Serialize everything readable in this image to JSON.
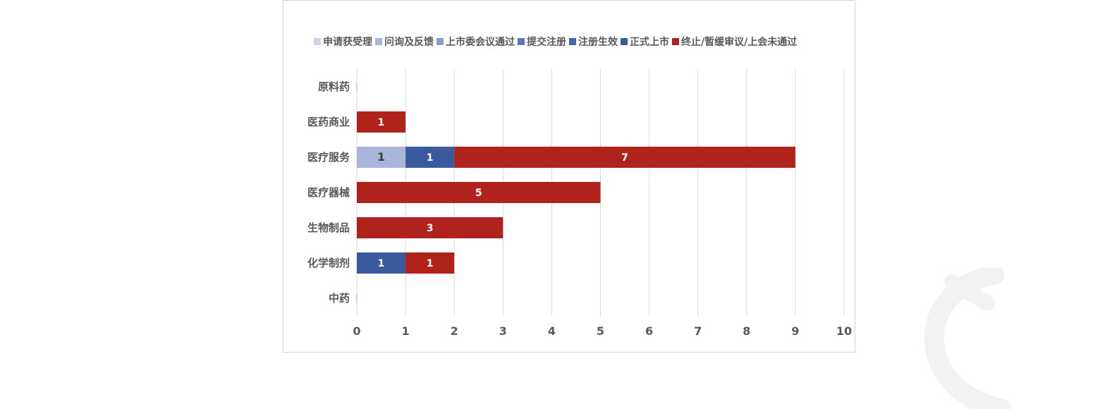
{
  "chart_data": {
    "type": "bar",
    "orientation": "horizontal",
    "stacked": true,
    "categories": [
      "原料药",
      "医药商业",
      "医疗服务",
      "医疗器械",
      "生物制品",
      "化学制剂",
      "中药"
    ],
    "series": [
      {
        "name": "申请获受理",
        "color": "#cdd3e6",
        "values": [
          0,
          0,
          0,
          0,
          0,
          0,
          0
        ]
      },
      {
        "name": "问询及反馈",
        "color": "#aab5da",
        "values": [
          0,
          0,
          1,
          0,
          0,
          0,
          0
        ]
      },
      {
        "name": "上市委会议通过",
        "color": "#8c9bce",
        "values": [
          0,
          0,
          0,
          0,
          0,
          0,
          0
        ]
      },
      {
        "name": "提交注册",
        "color": "#5a77bd",
        "values": [
          0,
          0,
          0,
          0,
          0,
          0,
          0
        ]
      },
      {
        "name": "注册生效",
        "color": "#4466ad",
        "values": [
          0,
          0,
          0,
          0,
          0,
          0,
          0
        ]
      },
      {
        "name": "正式上市",
        "color": "#3b5a9e",
        "values": [
          0,
          0,
          1,
          0,
          0,
          1,
          0
        ]
      },
      {
        "name": "终止/暂缓审议/上会未通过",
        "color": "#b0221c",
        "values": [
          0,
          1,
          7,
          5,
          3,
          1,
          0
        ]
      }
    ],
    "xlim": [
      0,
      10
    ],
    "xticks": [
      "0",
      "1",
      "2",
      "3",
      "4",
      "5",
      "6",
      "7",
      "8",
      "9",
      "10"
    ],
    "grid": "vertical",
    "legend": "top",
    "title": "",
    "xlabel": "",
    "ylabel": ""
  }
}
